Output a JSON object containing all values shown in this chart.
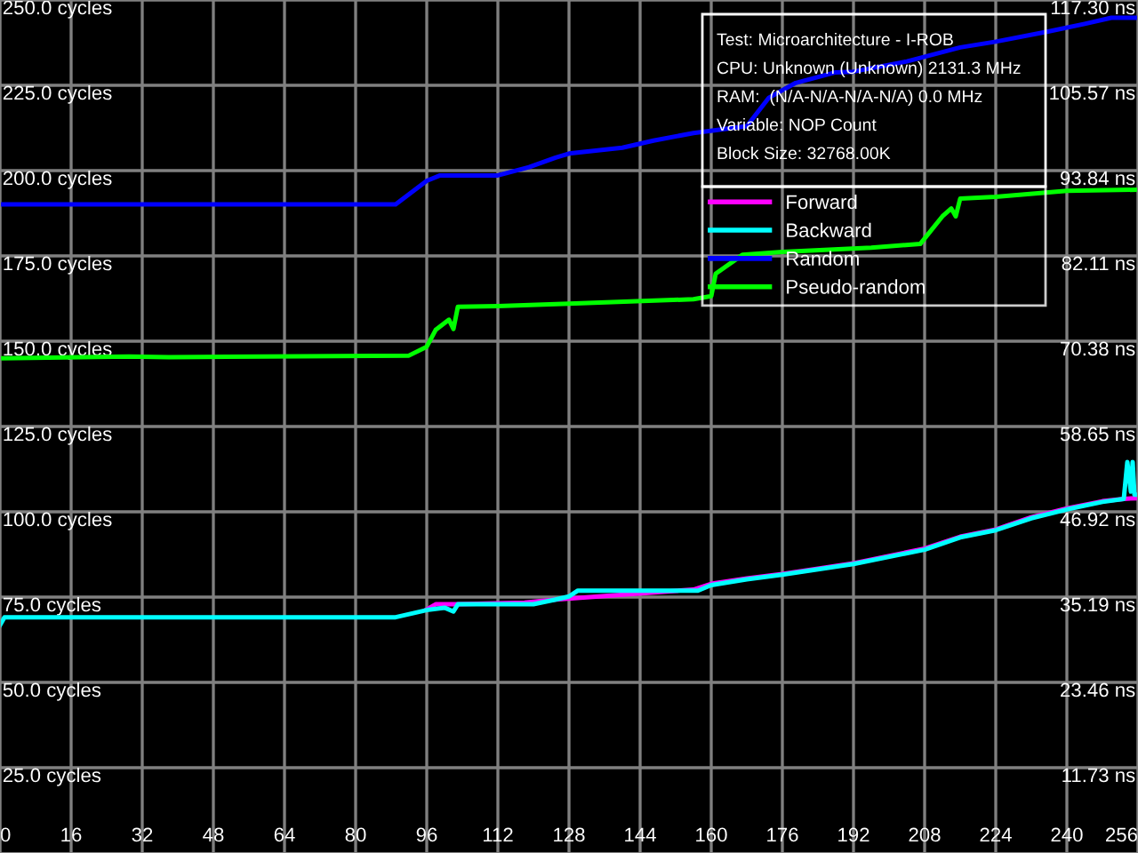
{
  "chart_data": {
    "type": "line",
    "annotations": [
      "Test: Microarchitecture - I-ROB",
      "CPU: Unknown (Unknown) 2131.3 MHz",
      "RAM:  (N/A-N/A-N/A-N/A) 0.0 MHz",
      "Variable: NOP Count",
      "Block Size: 32768.00K"
    ],
    "xlim": [
      0,
      256
    ],
    "xticks": [
      0,
      16,
      32,
      48,
      64,
      80,
      96,
      112,
      128,
      144,
      160,
      176,
      192,
      208,
      224,
      240,
      256
    ],
    "ylim": [
      0,
      250
    ],
    "yticks": [
      {
        "value": 25,
        "label": "25.0 cycles"
      },
      {
        "value": 50,
        "label": "50.0 cycles"
      },
      {
        "value": 75,
        "label": "75.0 cycles"
      },
      {
        "value": 100,
        "label": "100.0 cycles"
      },
      {
        "value": 125,
        "label": "125.0 cycles"
      },
      {
        "value": 150,
        "label": "150.0 cycles"
      },
      {
        "value": 175,
        "label": "175.0 cycles"
      },
      {
        "value": 200,
        "label": "200.0 cycles"
      },
      {
        "value": 225,
        "label": "225.0 cycles"
      },
      {
        "value": 250,
        "label": "250.0 cycles"
      }
    ],
    "y2lim": [
      0,
      117.3
    ],
    "y2ticks": [
      {
        "value": 11.73,
        "label": "11.73 ns"
      },
      {
        "value": 23.46,
        "label": "23.46 ns"
      },
      {
        "value": 35.19,
        "label": "35.19 ns"
      },
      {
        "value": 46.92,
        "label": "46.92 ns"
      },
      {
        "value": 58.65,
        "label": "58.65 ns"
      },
      {
        "value": 70.38,
        "label": "70.38 ns"
      },
      {
        "value": 82.11,
        "label": "82.11 ns"
      },
      {
        "value": 93.84,
        "label": "93.84 ns"
      },
      {
        "value": 105.57,
        "label": "105.57 ns"
      },
      {
        "value": 117.3,
        "label": "117.30 ns"
      }
    ],
    "grid": true,
    "legend": "top right",
    "series": [
      {
        "name": "Forward",
        "color": "#ff00ff",
        "x": [
          96,
          98,
          102,
          103,
          118,
          122,
          125,
          156,
          160,
          168,
          176,
          192,
          208,
          216,
          224,
          232,
          240,
          248,
          252.8,
          256
        ],
        "values": [
          71.4,
          72.9,
          72.9,
          72.9,
          73.4,
          73.9,
          74.3,
          77.2,
          78.9,
          80.5,
          81.8,
          84.9,
          89.2,
          92.7,
          94.8,
          98.4,
          101.0,
          103.1,
          103.8,
          104.0
        ]
      },
      {
        "name": "Backward",
        "color": "#00ffff",
        "x": [
          0,
          1,
          89,
          96,
          100,
          102,
          103,
          120,
          125,
          128,
          130,
          157,
          160,
          168,
          176,
          192,
          208,
          216,
          224,
          232,
          240,
          248,
          252.8,
          253.6,
          254.4,
          254.8,
          255.2,
          256
        ],
        "values": [
          66.8,
          69.1,
          69.1,
          71.2,
          71.9,
          70.8,
          72.9,
          72.9,
          74.3,
          75.2,
          76.9,
          76.9,
          78.5,
          80.2,
          81.6,
          84.7,
          88.9,
          92.5,
          94.6,
          98.1,
          100.7,
          102.9,
          103.8,
          114.6,
          105.9,
          114.6,
          105.0,
          105.0
        ]
      },
      {
        "name": "Random",
        "color": "#0000ff",
        "x": [
          0,
          89,
          96,
          99,
          112,
          119,
          125,
          128,
          140,
          147,
          156,
          168,
          173,
          179,
          188,
          192,
          204,
          216,
          224,
          236,
          244,
          250,
          256
        ],
        "values": [
          190.1,
          190.1,
          197.0,
          198.6,
          198.6,
          201.0,
          203.8,
          205.0,
          206.7,
          208.8,
          211.0,
          213.0,
          221.4,
          225.7,
          228.8,
          229.0,
          232.0,
          236.1,
          237.8,
          240.8,
          243.0,
          244.8,
          244.8
        ]
      },
      {
        "name": "Pseudo-random",
        "color": "#00ff00",
        "x": [
          0,
          29,
          38,
          92,
          96,
          98,
          101,
          102,
          103,
          112,
          128,
          156,
          160,
          161,
          167,
          176,
          196,
          207,
          212,
          214,
          215,
          216,
          224,
          240,
          256
        ],
        "values": [
          145.0,
          145.5,
          145.3,
          145.8,
          148.4,
          153.3,
          156.3,
          153.6,
          160.1,
          160.3,
          161.0,
          162.3,
          163.2,
          169.8,
          175.3,
          176.2,
          177.4,
          178.5,
          186.6,
          188.9,
          186.6,
          191.8,
          192.3,
          194.1,
          194.4
        ]
      }
    ]
  }
}
